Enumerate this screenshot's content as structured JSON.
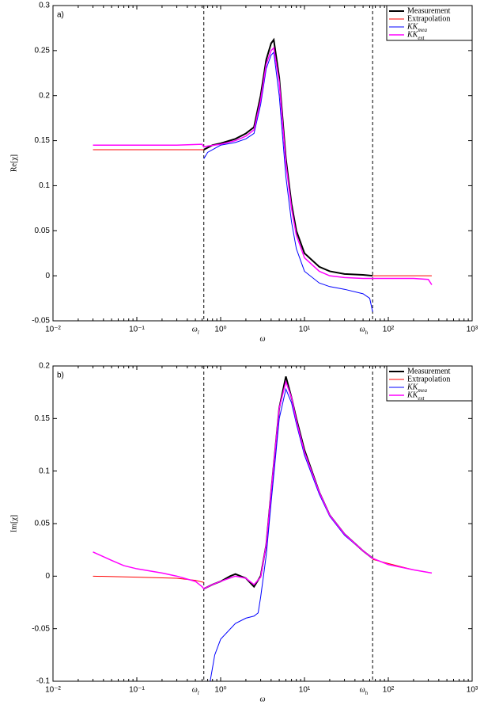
{
  "chart_data": [
    {
      "type": "line",
      "annotation": "a)",
      "xlabel": "ω",
      "ylabel": "Re[χ]",
      "xscale": "log",
      "xlim": [
        0.01,
        1000
      ],
      "xticks": [
        {
          "value": 0.01,
          "label": "10⁻²"
        },
        {
          "value": 0.1,
          "label": "10⁻¹"
        },
        {
          "value": 1,
          "label": "10⁰"
        },
        {
          "value": 10,
          "label": "10¹"
        },
        {
          "value": 100,
          "label": "10²"
        },
        {
          "value": 1000,
          "label": "10³"
        }
      ],
      "ylim": [
        -0.05,
        0.3
      ],
      "yticks": [
        -0.05,
        0,
        0.05,
        0.1,
        0.15,
        0.2,
        0.25,
        0.3
      ],
      "markers": [
        {
          "x": 0.63,
          "label": "ω_l"
        },
        {
          "x": 65,
          "label": "ω_h"
        }
      ],
      "legend": "upper right",
      "series": [
        {
          "name": "Measurement",
          "color": "#000000",
          "width": 2,
          "x": [
            0.63,
            0.8,
            1,
            1.5,
            2,
            2.5,
            3,
            3.5,
            4,
            4.3,
            5,
            6,
            7,
            8,
            10,
            15,
            20,
            30,
            50,
            65
          ],
          "values": [
            0.14,
            0.145,
            0.147,
            0.152,
            0.158,
            0.165,
            0.2,
            0.24,
            0.258,
            0.262,
            0.22,
            0.13,
            0.08,
            0.05,
            0.025,
            0.01,
            0.005,
            0.002,
            0.001,
            0
          ]
        },
        {
          "name": "Extrapolation",
          "color": "#ff0000",
          "width": 1,
          "x": [
            0.03,
            0.1,
            0.3,
            0.63,
            null,
            65,
            100,
            200,
            330
          ],
          "values": [
            0.14,
            0.14,
            0.14,
            0.14,
            null,
            0,
            0,
            0,
            0
          ]
        },
        {
          "name": "KK_mea",
          "color": "#0000ff",
          "width": 1,
          "x": [
            0.63,
            0.7,
            1,
            1.5,
            2,
            2.5,
            3,
            3.5,
            4,
            4.3,
            5,
            6,
            7,
            8,
            10,
            15,
            20,
            30,
            50,
            60,
            65
          ],
          "values": [
            0.13,
            0.137,
            0.145,
            0.148,
            0.152,
            0.158,
            0.19,
            0.23,
            0.245,
            0.248,
            0.2,
            0.11,
            0.06,
            0.03,
            0.005,
            -0.008,
            -0.012,
            -0.015,
            -0.02,
            -0.025,
            -0.04
          ]
        },
        {
          "name": "KK_ext",
          "color": "#ff00ff",
          "width": 1.5,
          "x": [
            0.03,
            0.1,
            0.3,
            0.6,
            0.63,
            0.7,
            1,
            1.5,
            2,
            2.5,
            3,
            3.5,
            4,
            4.3,
            5,
            6,
            7,
            8,
            10,
            15,
            20,
            30,
            50,
            65,
            100,
            200,
            300,
            330
          ],
          "values": [
            0.145,
            0.145,
            0.145,
            0.146,
            0.143,
            0.144,
            0.146,
            0.15,
            0.155,
            0.162,
            0.195,
            0.235,
            0.25,
            0.253,
            0.215,
            0.125,
            0.075,
            0.045,
            0.02,
            0.005,
            0,
            -0.002,
            -0.003,
            -0.003,
            -0.003,
            -0.003,
            -0.004,
            -0.01
          ]
        }
      ]
    },
    {
      "type": "line",
      "annotation": "b)",
      "xlabel": "ω",
      "ylabel": "Im[χ]",
      "xscale": "log",
      "xlim": [
        0.01,
        1000
      ],
      "xticks": [
        {
          "value": 0.01,
          "label": "10⁻²"
        },
        {
          "value": 0.1,
          "label": "10⁻¹"
        },
        {
          "value": 1,
          "label": "10⁰"
        },
        {
          "value": 10,
          "label": "10¹"
        },
        {
          "value": 100,
          "label": "10²"
        },
        {
          "value": 1000,
          "label": "10³"
        }
      ],
      "ylim": [
        -0.1,
        0.2
      ],
      "yticks": [
        -0.1,
        -0.05,
        0,
        0.05,
        0.1,
        0.15,
        0.2
      ],
      "markers": [
        {
          "x": 0.63,
          "label": "ω_l"
        },
        {
          "x": 65,
          "label": "ω_h"
        }
      ],
      "legend": "upper right",
      "series": [
        {
          "name": "Measurement",
          "color": "#000000",
          "width": 2,
          "x": [
            0.63,
            0.8,
            1,
            1.3,
            1.5,
            2,
            2.5,
            3,
            3.5,
            4,
            5,
            6,
            7,
            8,
            10,
            15,
            20,
            30,
            50,
            65
          ],
          "values": [
            -0.012,
            -0.008,
            -0.005,
            0,
            0.002,
            -0.002,
            -0.01,
            0,
            0.03,
            0.08,
            0.16,
            0.19,
            0.17,
            0.15,
            0.12,
            0.08,
            0.058,
            0.04,
            0.024,
            0.017
          ]
        },
        {
          "name": "Extrapolation",
          "color": "#ff0000",
          "width": 1,
          "x": [
            0.03,
            0.1,
            0.3,
            0.5,
            0.63,
            null,
            65,
            100,
            200,
            330
          ],
          "values": [
            0,
            -0.001,
            -0.002,
            -0.004,
            -0.006,
            null,
            0.016,
            0.012,
            0.006,
            0.003
          ]
        },
        {
          "name": "KK_mea",
          "color": "#0000ff",
          "width": 1,
          "x": [
            0.63,
            0.75,
            0.85,
            1,
            1.5,
            2,
            2.5,
            2.8,
            3,
            3.5,
            4,
            5,
            6,
            7,
            8,
            10,
            15,
            20,
            30,
            50,
            65
          ],
          "values": [
            -0.15,
            -0.1,
            -0.075,
            -0.06,
            -0.045,
            -0.04,
            -0.038,
            -0.035,
            -0.02,
            0.02,
            0.07,
            0.15,
            0.178,
            0.165,
            0.145,
            0.115,
            0.078,
            0.057,
            0.039,
            0.024,
            0.017
          ]
        },
        {
          "name": "KK_ext",
          "color": "#ff00ff",
          "width": 1.5,
          "x": [
            0.03,
            0.05,
            0.07,
            0.1,
            0.2,
            0.3,
            0.5,
            0.6,
            0.63,
            0.8,
            1,
            1.5,
            2,
            2.5,
            3,
            3.5,
            4,
            5,
            6,
            7,
            8,
            10,
            15,
            20,
            30,
            50,
            65,
            100,
            200,
            330
          ],
          "values": [
            0.023,
            0.015,
            0.01,
            0.007,
            0.003,
            0,
            -0.005,
            -0.01,
            -0.012,
            -0.008,
            -0.005,
            0,
            -0.002,
            -0.008,
            -0.001,
            0.03,
            0.08,
            0.16,
            0.185,
            0.17,
            0.148,
            0.118,
            0.08,
            0.058,
            0.04,
            0.024,
            0.017,
            0.011,
            0.006,
            0.003
          ]
        }
      ]
    }
  ]
}
